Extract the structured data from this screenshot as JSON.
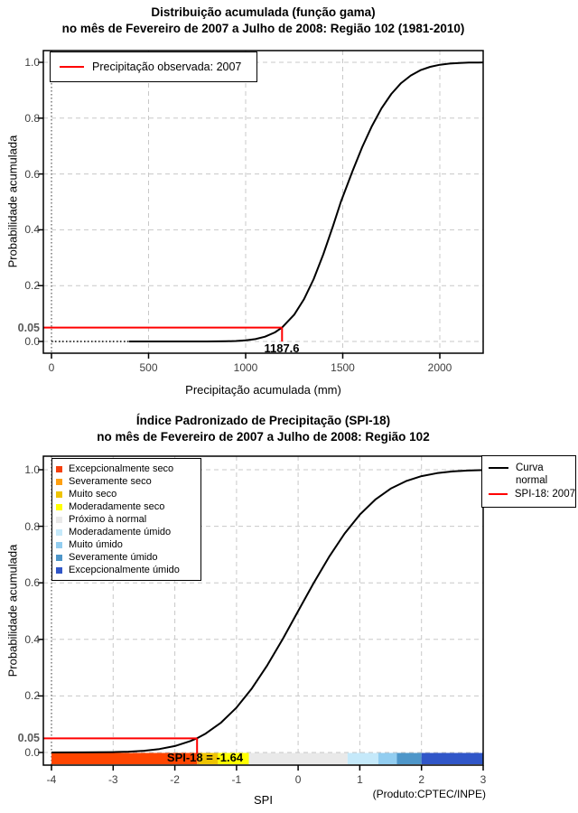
{
  "page": {
    "background": "#FFFFFF",
    "grid_color": "#C8C8C8",
    "accent_red": "#FF0000"
  },
  "chart_data": [
    {
      "type": "line",
      "title": "Distribuição acumulada (função gama)",
      "subtitle": "no mês de Fevereiro de 2007 a Julho de 2008: Região 102 (1981-2010)",
      "xlabel": "Precipitação acumulada (mm)",
      "ylabel": "Probabilidade acumulada",
      "xlim": [
        0,
        2230
      ],
      "ylim": [
        0,
        1
      ],
      "grid": true,
      "legend": {
        "position": "top-left",
        "items": [
          {
            "label": "Precipitação observada: 2007",
            "color": "#FF0000"
          }
        ]
      },
      "xticks": [
        0,
        500,
        1000,
        1500,
        2000
      ],
      "yticks": [
        {
          "value": 0.0,
          "label": "0.0"
        },
        {
          "value": 0.05,
          "label": "0.05",
          "bold": true,
          "tick": false
        },
        {
          "value": 0.2,
          "label": "0.2"
        },
        {
          "value": 0.4,
          "label": "0.4"
        },
        {
          "value": 0.6,
          "label": "0.6"
        },
        {
          "value": 0.8,
          "label": "0.8"
        },
        {
          "value": 1.0,
          "label": "1.0"
        }
      ],
      "marker": {
        "x": 1187.6,
        "y": 0.05,
        "label": "1187.6",
        "color": "#FF0000"
      },
      "series": [
        {
          "name": "Distribuição gama acumulada",
          "color": "#000000",
          "x": [
            0,
            200,
            400,
            600,
            800,
            850,
            900,
            950,
            1000,
            1050,
            1100,
            1150,
            1187.6,
            1250,
            1300,
            1350,
            1400,
            1450,
            1490,
            1550,
            1600,
            1650,
            1700,
            1750,
            1800,
            1850,
            1900,
            1950,
            2000,
            2050,
            2100,
            2150,
            2200,
            2223
          ],
          "y": [
            0,
            0,
            0,
            0.0001,
            0.0001,
            0.0003,
            0.0007,
            0.0017,
            0.0039,
            0.0084,
            0.017,
            0.0323,
            0.05,
            0.0961,
            0.1509,
            0.2233,
            0.3124,
            0.4141,
            0.5,
            0.6099,
            0.6957,
            0.7716,
            0.8357,
            0.8867,
            0.9254,
            0.9529,
            0.9717,
            0.9838,
            0.9912,
            0.9954,
            0.9977,
            0.9989,
            0.9995,
            0.9997
          ]
        }
      ]
    },
    {
      "type": "line",
      "title": "Índice Padronizado de Precipitação (SPI-18)",
      "subtitle": "no mês de Fevereiro de 2007 a Julho de 2008: Região 102",
      "xlabel": "SPI",
      "ylabel": "Probabilidade acumulada",
      "caption": "(Produto:CPTEC/INPE)",
      "xlim": [
        -4,
        3
      ],
      "ylim": [
        0,
        1
      ],
      "grid": true,
      "legend": {
        "position": "top-right",
        "items": [
          {
            "label": "Curva normal",
            "color": "#000000"
          },
          {
            "label": "SPI-18: 2007",
            "color": "#FF0000"
          }
        ]
      },
      "categories": [
        {
          "label": "Excepcionalmente seco",
          "color": "#F5400D"
        },
        {
          "label": "Severamente seco",
          "color": "#FFA011"
        },
        {
          "label": "Muito seco",
          "color": "#EFC402"
        },
        {
          "label": "Moderadamente seco",
          "color": "#FFFF00"
        },
        {
          "label": "Próximo à normal",
          "color": "#E9E9E9"
        },
        {
          "label": "Moderadamente úmido",
          "color": "#C5E9FA"
        },
        {
          "label": "Muito úmido",
          "color": "#92CDF0"
        },
        {
          "label": "Severamente úmido",
          "color": "#4E96C9"
        },
        {
          "label": "Excepcionalmente úmido",
          "color": "#3056C8"
        }
      ],
      "xticks": [
        -4,
        -3,
        -2,
        -1,
        0,
        1,
        2,
        3
      ],
      "yticks": [
        {
          "value": 0.0,
          "label": "0.0"
        },
        {
          "value": 0.05,
          "label": "0.05",
          "bold": true,
          "tick": false
        },
        {
          "value": 0.2,
          "label": "0.2"
        },
        {
          "value": 0.4,
          "label": "0.4"
        },
        {
          "value": 0.6,
          "label": "0.6"
        },
        {
          "value": 0.8,
          "label": "0.8"
        },
        {
          "value": 1.0,
          "label": "1.0"
        }
      ],
      "marker": {
        "x": -1.64,
        "y": 0.05,
        "label": "SPI-18 = -1.64",
        "color": "#FF0000"
      },
      "category_bar": {
        "segments": [
          {
            "from": -4.0,
            "to": -1.64,
            "color": "#FF4500"
          },
          {
            "from": -1.64,
            "to": -1.6,
            "color": "#FFA011"
          },
          {
            "from": -1.6,
            "to": -1.3,
            "color": "#EFC402"
          },
          {
            "from": -1.3,
            "to": -0.8,
            "color": "#FFFF00"
          },
          {
            "from": -0.8,
            "to": 0.8,
            "color": "#E9E9E9"
          },
          {
            "from": 0.8,
            "to": 1.3,
            "color": "#C5E9FA"
          },
          {
            "from": 1.3,
            "to": 1.6,
            "color": "#92CDF0"
          },
          {
            "from": 1.6,
            "to": 2.0,
            "color": "#4E96C9"
          },
          {
            "from": 2.0,
            "to": 3.0,
            "color": "#3056C8"
          }
        ]
      },
      "series": [
        {
          "name": "Curva normal",
          "color": "#000000",
          "x": [
            -4,
            -3.5,
            -3,
            -2.75,
            -2.5,
            -2.25,
            -2,
            -1.75,
            -1.64,
            -1.5,
            -1.25,
            -1,
            -0.75,
            -0.5,
            -0.25,
            0,
            0.25,
            0.5,
            0.75,
            1,
            1.25,
            1.5,
            1.75,
            2,
            2.25,
            2.5,
            2.75,
            3
          ],
          "y": [
            0.0,
            0.0002,
            0.0013,
            0.003,
            0.0062,
            0.0122,
            0.0228,
            0.0401,
            0.0505,
            0.0668,
            0.1056,
            0.1587,
            0.2266,
            0.3085,
            0.4013,
            0.5,
            0.5987,
            0.6915,
            0.7734,
            0.8413,
            0.8944,
            0.9332,
            0.9599,
            0.9772,
            0.9878,
            0.9938,
            0.997,
            0.9987
          ]
        }
      ]
    }
  ]
}
